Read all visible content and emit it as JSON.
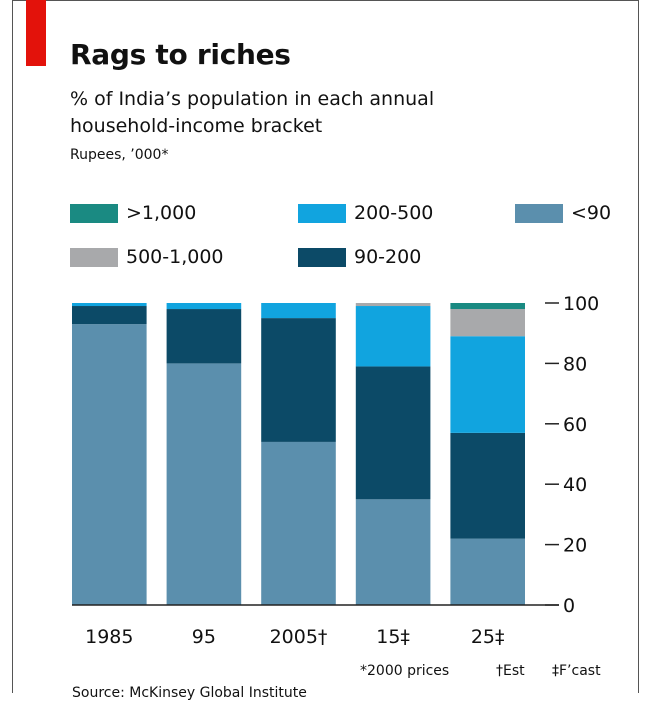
{
  "header": {
    "title": "Rags to riches",
    "subtitle": "% of India’s population in each annual household-income bracket",
    "unit": "Rupees, ’000*"
  },
  "legend": [
    {
      "label": ">1,000",
      "color": "#1a8a82"
    },
    {
      "label": "200-500",
      "color": "#11a4df"
    },
    {
      "label": "<90",
      "color": "#5b8fad"
    },
    {
      "label": "500-1,000",
      "color": "#a8a9ab"
    },
    {
      "label": "90-200",
      "color": "#0c4a67"
    }
  ],
  "footnotes": {
    "prices": "*2000 prices",
    "est": "†Est",
    "fcast": "‡F’cast"
  },
  "source": "Source: McKinsey Global Institute",
  "chart_data": {
    "type": "bar",
    "stacked": true,
    "categories": [
      "1985",
      "95",
      "2005†",
      "15‡",
      "25‡"
    ],
    "series": [
      {
        "name": "<90",
        "color": "#5b8fad",
        "values": [
          93,
          80,
          54,
          35,
          22
        ]
      },
      {
        "name": "90-200",
        "color": "#0c4a67",
        "values": [
          6,
          18,
          41,
          44,
          35
        ]
      },
      {
        "name": "200-500",
        "color": "#11a4df",
        "values": [
          1,
          2,
          5,
          20,
          32
        ]
      },
      {
        "name": "500-1,000",
        "color": "#a8a9ab",
        "values": [
          0,
          0,
          0,
          1,
          9
        ]
      },
      {
        "name": ">1,000",
        "color": "#1a8a82",
        "values": [
          0,
          0,
          0,
          0,
          2
        ]
      }
    ],
    "ylim": [
      0,
      100
    ],
    "yticks": [
      0,
      20,
      40,
      60,
      80,
      100
    ],
    "y_axis_side": "right",
    "grid": false,
    "legend_position": "top"
  }
}
